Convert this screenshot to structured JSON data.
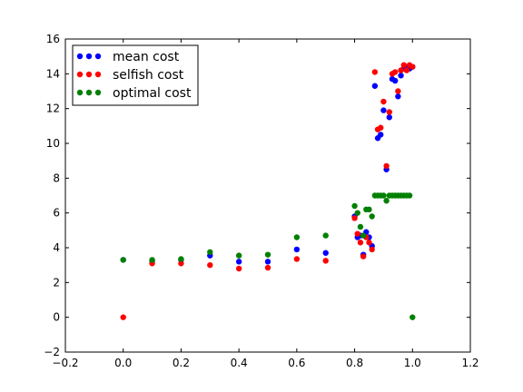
{
  "chart_data": {
    "type": "scatter",
    "title": "",
    "xlabel": "",
    "ylabel": "",
    "xlim": [
      -0.2,
      1.2
    ],
    "ylim": [
      -2,
      16
    ],
    "xticks": [
      "−0.2",
      "0.0",
      "0.2",
      "0.4",
      "0.6",
      "0.8",
      "1.0",
      "1.2"
    ],
    "yticks": [
      "−2",
      "0",
      "2",
      "4",
      "6",
      "8",
      "10",
      "12",
      "14",
      "16"
    ],
    "grid": false,
    "legend_position": "top-left",
    "series": [
      {
        "name": "mean cost",
        "color": "#0000ff",
        "points": [
          [
            0.0,
            3.3
          ],
          [
            0.1,
            3.25
          ],
          [
            0.2,
            3.3
          ],
          [
            0.3,
            3.55
          ],
          [
            0.4,
            3.2
          ],
          [
            0.5,
            3.2
          ],
          [
            0.6,
            3.9
          ],
          [
            0.7,
            3.7
          ],
          [
            0.8,
            5.8
          ],
          [
            0.81,
            4.6
          ],
          [
            0.82,
            4.7
          ],
          [
            0.83,
            3.6
          ],
          [
            0.84,
            4.9
          ],
          [
            0.85,
            4.6
          ],
          [
            0.86,
            4.1
          ],
          [
            0.87,
            13.3
          ],
          [
            0.88,
            10.3
          ],
          [
            0.89,
            10.5
          ],
          [
            0.9,
            11.9
          ],
          [
            0.91,
            8.5
          ],
          [
            0.92,
            11.5
          ],
          [
            0.93,
            13.7
          ],
          [
            0.94,
            13.6
          ],
          [
            0.95,
            12.7
          ],
          [
            0.96,
            13.9
          ],
          [
            0.97,
            14.3
          ],
          [
            0.98,
            14.4
          ],
          [
            0.99,
            14.3
          ],
          [
            1.0,
            14.4
          ]
        ]
      },
      {
        "name": "selfish cost",
        "color": "#ff0000",
        "points": [
          [
            0.0,
            0.0
          ],
          [
            0.1,
            3.1
          ],
          [
            0.2,
            3.1
          ],
          [
            0.3,
            3.0
          ],
          [
            0.4,
            2.8
          ],
          [
            0.5,
            2.85
          ],
          [
            0.6,
            3.35
          ],
          [
            0.7,
            3.25
          ],
          [
            0.8,
            5.7
          ],
          [
            0.81,
            4.8
          ],
          [
            0.82,
            4.3
          ],
          [
            0.83,
            3.5
          ],
          [
            0.84,
            4.6
          ],
          [
            0.85,
            4.3
          ],
          [
            0.86,
            3.9
          ],
          [
            0.87,
            14.1
          ],
          [
            0.88,
            10.8
          ],
          [
            0.89,
            10.9
          ],
          [
            0.9,
            12.4
          ],
          [
            0.91,
            8.7
          ],
          [
            0.92,
            11.8
          ],
          [
            0.93,
            14.0
          ],
          [
            0.94,
            14.1
          ],
          [
            0.95,
            13.0
          ],
          [
            0.96,
            14.2
          ],
          [
            0.97,
            14.5
          ],
          [
            0.98,
            14.2
          ],
          [
            0.99,
            14.5
          ],
          [
            1.0,
            14.4
          ]
        ]
      },
      {
        "name": "optimal cost",
        "color": "#008000",
        "points": [
          [
            0.0,
            3.3
          ],
          [
            0.1,
            3.3
          ],
          [
            0.2,
            3.35
          ],
          [
            0.3,
            3.75
          ],
          [
            0.4,
            3.55
          ],
          [
            0.5,
            3.6
          ],
          [
            0.6,
            4.6
          ],
          [
            0.7,
            4.7
          ],
          [
            0.8,
            6.4
          ],
          [
            0.81,
            6.0
          ],
          [
            0.82,
            5.2
          ],
          [
            0.83,
            4.7
          ],
          [
            0.84,
            6.2
          ],
          [
            0.85,
            6.2
          ],
          [
            0.86,
            5.8
          ],
          [
            0.87,
            7.0
          ],
          [
            0.88,
            7.0
          ],
          [
            0.89,
            7.0
          ],
          [
            0.9,
            7.0
          ],
          [
            0.91,
            6.7
          ],
          [
            0.92,
            7.0
          ],
          [
            0.93,
            7.0
          ],
          [
            0.94,
            7.0
          ],
          [
            0.95,
            7.0
          ],
          [
            0.96,
            7.0
          ],
          [
            0.97,
            7.0
          ],
          [
            0.98,
            7.0
          ],
          [
            0.99,
            7.0
          ],
          [
            1.0,
            0.0
          ]
        ]
      }
    ]
  }
}
